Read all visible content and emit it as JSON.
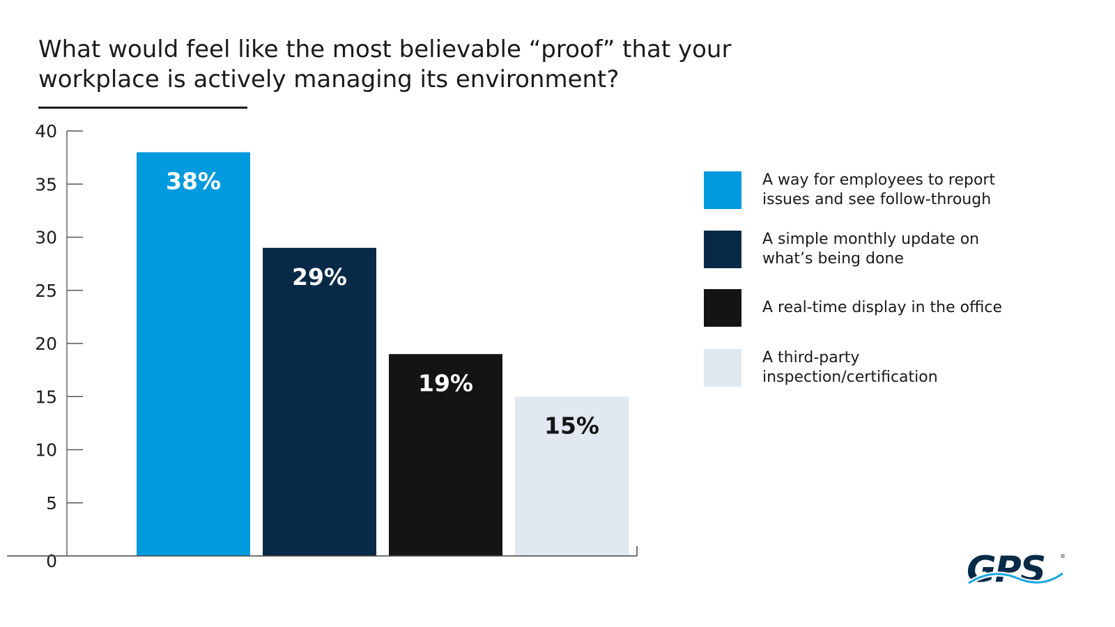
{
  "title": "What would feel like the most believable “proof” that your workplace is actively managing its environment?",
  "chart_data": {
    "type": "bar",
    "title": "What would feel like the most believable “proof” that your workplace is actively managing its environment?",
    "categories": [
      "A way for employees to report issues and see follow-through",
      "A simple monthly update on what’s being done",
      "A real-time display in the office",
      "A third-party inspection/certification"
    ],
    "values": [
      38,
      29,
      19,
      15
    ],
    "data_labels": [
      "38%",
      "29%",
      "19%",
      "15%"
    ],
    "colors": [
      "#009ADE",
      "#082A47",
      "#141414",
      "#E1E8EF"
    ],
    "label_colors": [
      "#FFFFFF",
      "#FFFFFF",
      "#FFFFFF",
      "#141414"
    ],
    "ylim": [
      0,
      40
    ],
    "yticks": [
      "0",
      "5",
      "10",
      "15",
      "20",
      "25",
      "30",
      "35",
      "40"
    ],
    "xlabel": "",
    "ylabel": "",
    "grid": false,
    "legend_position": "right"
  },
  "logo": {
    "text": "GPS",
    "mark": "®"
  }
}
